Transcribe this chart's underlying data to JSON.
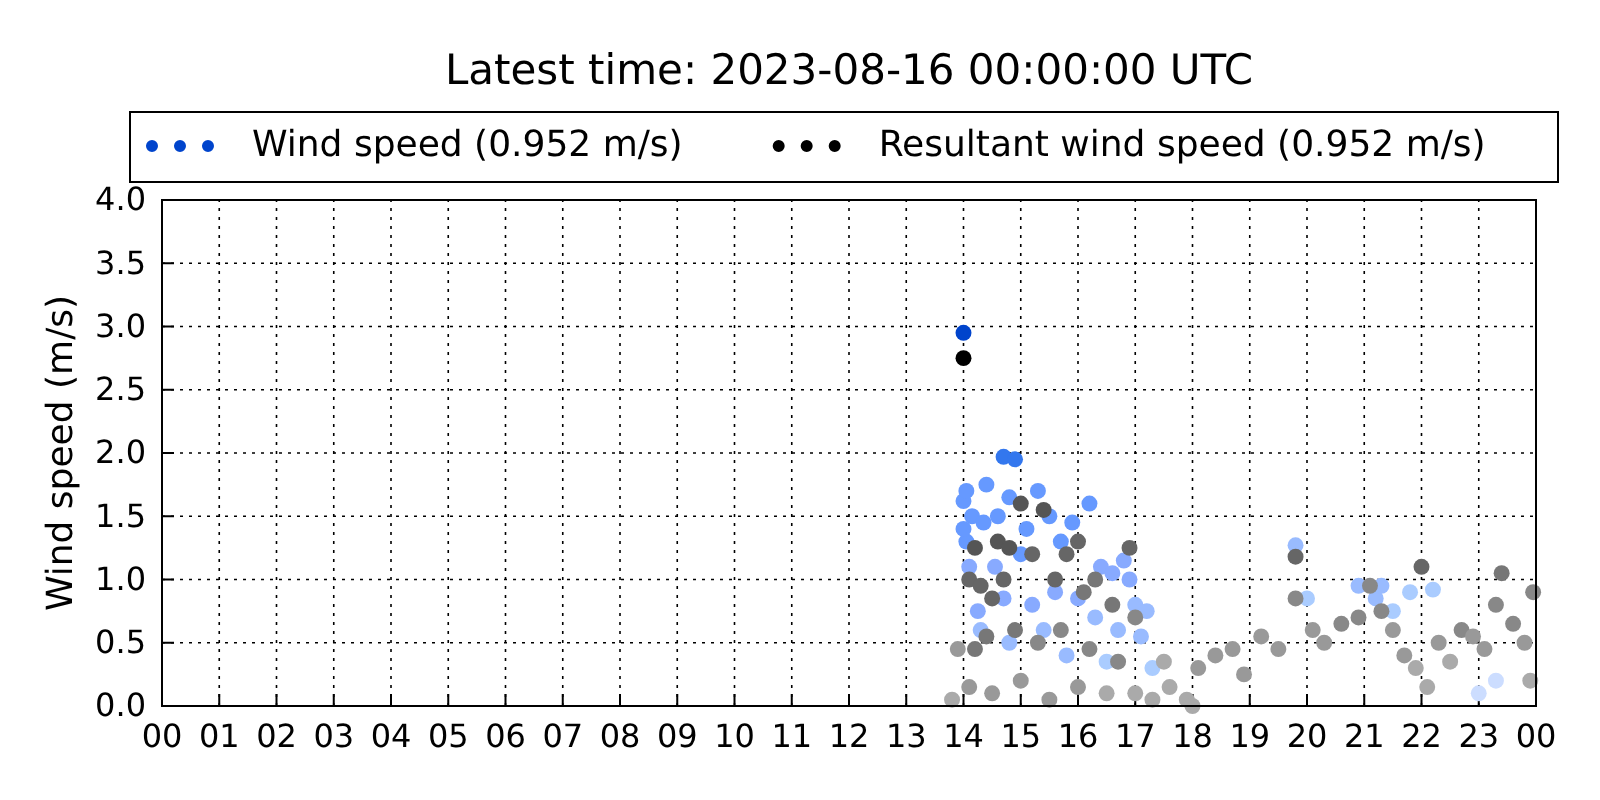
{
  "chart_data": {
    "type": "scatter",
    "title": "Latest time: 2023-08-16 00:00:00 UTC",
    "ylabel": "Wind speed (m/s)",
    "xlim": [
      0,
      24
    ],
    "ylim": [
      0,
      4
    ],
    "xticks": [
      {
        "value": 0,
        "label": "00"
      },
      {
        "value": 1,
        "label": "01"
      },
      {
        "value": 2,
        "label": "02"
      },
      {
        "value": 3,
        "label": "03"
      },
      {
        "value": 4,
        "label": "04"
      },
      {
        "value": 5,
        "label": "05"
      },
      {
        "value": 6,
        "label": "06"
      },
      {
        "value": 7,
        "label": "07"
      },
      {
        "value": 8,
        "label": "08"
      },
      {
        "value": 9,
        "label": "09"
      },
      {
        "value": 10,
        "label": "10"
      },
      {
        "value": 11,
        "label": "11"
      },
      {
        "value": 12,
        "label": "12"
      },
      {
        "value": 13,
        "label": "13"
      },
      {
        "value": 14,
        "label": "14"
      },
      {
        "value": 15,
        "label": "15"
      },
      {
        "value": 16,
        "label": "16"
      },
      {
        "value": 17,
        "label": "17"
      },
      {
        "value": 18,
        "label": "18"
      },
      {
        "value": 19,
        "label": "19"
      },
      {
        "value": 20,
        "label": "20"
      },
      {
        "value": 21,
        "label": "21"
      },
      {
        "value": 22,
        "label": "22"
      },
      {
        "value": 23,
        "label": "23"
      },
      {
        "value": 24,
        "label": "00"
      }
    ],
    "yticks": [
      {
        "value": 0,
        "label": "0.0"
      },
      {
        "value": 0.5,
        "label": "0.5"
      },
      {
        "value": 1,
        "label": "1.0"
      },
      {
        "value": 1.5,
        "label": "1.5"
      },
      {
        "value": 2,
        "label": "2.0"
      },
      {
        "value": 2.5,
        "label": "2.5"
      },
      {
        "value": 3,
        "label": "3.0"
      },
      {
        "value": 3.5,
        "label": "3.5"
      },
      {
        "value": 4,
        "label": "4.0"
      }
    ],
    "grid": true,
    "legend": "top",
    "marker": "circle",
    "series": [
      {
        "name": "Wind speed (0.952 m/s)",
        "color": "#0044cc",
        "x": [
          14.0,
          14.7,
          14.9,
          14.0,
          14.05,
          14.4,
          14.15,
          14.35,
          14.05,
          14.6,
          14.8,
          15.1,
          15.3,
          15.0,
          15.5,
          15.7,
          15.9,
          16.2,
          16.4,
          16.6,
          16.9,
          16.8,
          17.0,
          17.2,
          14.25,
          14.55,
          14.7,
          15.2,
          15.6,
          16.0,
          16.3,
          16.7,
          17.1,
          14.3,
          14.8,
          15.4,
          15.8,
          16.5,
          17.3,
          19.8,
          20.0,
          20.9,
          21.2,
          21.3,
          21.5,
          21.8,
          22.2,
          23.3,
          23.0,
          14.0,
          14.1
        ],
        "values": [
          2.95,
          1.97,
          1.95,
          1.62,
          1.7,
          1.75,
          1.5,
          1.45,
          1.3,
          1.5,
          1.65,
          1.4,
          1.7,
          1.2,
          1.5,
          1.3,
          1.45,
          1.6,
          1.1,
          1.05,
          1.0,
          1.15,
          0.8,
          0.75,
          0.75,
          1.1,
          0.85,
          0.8,
          0.9,
          0.85,
          0.7,
          0.6,
          0.55,
          0.6,
          0.5,
          0.6,
          0.4,
          0.35,
          0.3,
          1.27,
          0.85,
          0.95,
          0.85,
          0.95,
          0.75,
          0.9,
          0.92,
          0.2,
          0.1,
          1.4,
          1.1
        ],
        "colors": [
          "#0044cc",
          "#3377ee",
          "#3377ee",
          "#6699ff",
          "#6699ff",
          "#6699ff",
          "#6699ff",
          "#6699ff",
          "#6699ff",
          "#6699ff",
          "#6699ff",
          "#6699ff",
          "#6699ff",
          "#6699ff",
          "#6699ff",
          "#6699ff",
          "#6699ff",
          "#6699ff",
          "#88aaff",
          "#88aaff",
          "#88aaff",
          "#88aaff",
          "#99bbff",
          "#99bbff",
          "#88aaff",
          "#88aaff",
          "#88aaff",
          "#88aaff",
          "#88aaff",
          "#88aaff",
          "#99bbff",
          "#99bbff",
          "#99bbff",
          "#99bbff",
          "#99bbff",
          "#99bbff",
          "#99bbff",
          "#aaccff",
          "#aaccff",
          "#99bbff",
          "#aaccff",
          "#99bbff",
          "#99bbff",
          "#99bbff",
          "#aaccff",
          "#aaccff",
          "#aaccff",
          "#ccddff",
          "#ccddff",
          "#6699ff",
          "#88aaff"
        ]
      },
      {
        "name": "Resultant wind speed (0.952 m/s)",
        "color": "#000000",
        "x": [
          14.0,
          14.2,
          14.6,
          14.8,
          14.1,
          14.3,
          14.5,
          14.7,
          15.0,
          15.2,
          15.4,
          15.6,
          15.8,
          16.0,
          16.1,
          16.3,
          16.6,
          16.9,
          17.0,
          14.2,
          14.4,
          14.9,
          15.3,
          15.7,
          16.2,
          16.7,
          14.1,
          14.5,
          15.0,
          15.5,
          16.0,
          16.5,
          17.0,
          17.3,
          17.6,
          17.9,
          18.1,
          18.4,
          18.7,
          18.9,
          19.2,
          19.5,
          19.8,
          19.8,
          20.1,
          20.3,
          20.6,
          20.9,
          21.1,
          21.3,
          21.5,
          21.7,
          21.9,
          22.0,
          22.1,
          22.3,
          22.5,
          22.7,
          22.9,
          23.1,
          23.3,
          23.4,
          23.6,
          23.8,
          23.95,
          23.9,
          13.8,
          13.9,
          17.5,
          18.0
        ],
        "values": [
          2.75,
          1.25,
          1.3,
          1.25,
          1.0,
          0.95,
          0.85,
          1.0,
          1.6,
          1.2,
          1.55,
          1.0,
          1.2,
          1.3,
          0.9,
          1.0,
          0.8,
          1.25,
          0.7,
          0.45,
          0.55,
          0.6,
          0.5,
          0.6,
          0.45,
          0.35,
          0.15,
          0.1,
          0.2,
          0.05,
          0.15,
          0.1,
          0.1,
          0.05,
          0.15,
          0.05,
          0.3,
          0.4,
          0.45,
          0.25,
          0.55,
          0.45,
          1.18,
          0.85,
          0.6,
          0.5,
          0.65,
          0.7,
          0.95,
          0.75,
          0.6,
          0.4,
          0.3,
          1.1,
          0.15,
          0.5,
          0.35,
          0.6,
          0.55,
          0.45,
          0.8,
          1.05,
          0.65,
          0.5,
          0.9,
          0.2,
          0.05,
          0.45,
          0.35,
          0.0
        ],
        "colors": [
          "#000000",
          "#555555",
          "#555555",
          "#555555",
          "#666666",
          "#666666",
          "#666666",
          "#666666",
          "#555555",
          "#666666",
          "#555555",
          "#666666",
          "#666666",
          "#666666",
          "#777777",
          "#777777",
          "#777777",
          "#666666",
          "#888888",
          "#777777",
          "#777777",
          "#777777",
          "#888888",
          "#888888",
          "#888888",
          "#888888",
          "#999999",
          "#999999",
          "#999999",
          "#999999",
          "#999999",
          "#aaaaaa",
          "#aaaaaa",
          "#aaaaaa",
          "#aaaaaa",
          "#aaaaaa",
          "#999999",
          "#999999",
          "#999999",
          "#999999",
          "#999999",
          "#999999",
          "#666666",
          "#888888",
          "#999999",
          "#999999",
          "#888888",
          "#888888",
          "#888888",
          "#888888",
          "#999999",
          "#999999",
          "#aaaaaa",
          "#666666",
          "#aaaaaa",
          "#999999",
          "#aaaaaa",
          "#888888",
          "#999999",
          "#999999",
          "#888888",
          "#777777",
          "#888888",
          "#999999",
          "#888888",
          "#aaaaaa",
          "#aaaaaa",
          "#999999",
          "#aaaaaa",
          "#aaaaaa"
        ]
      }
    ]
  }
}
